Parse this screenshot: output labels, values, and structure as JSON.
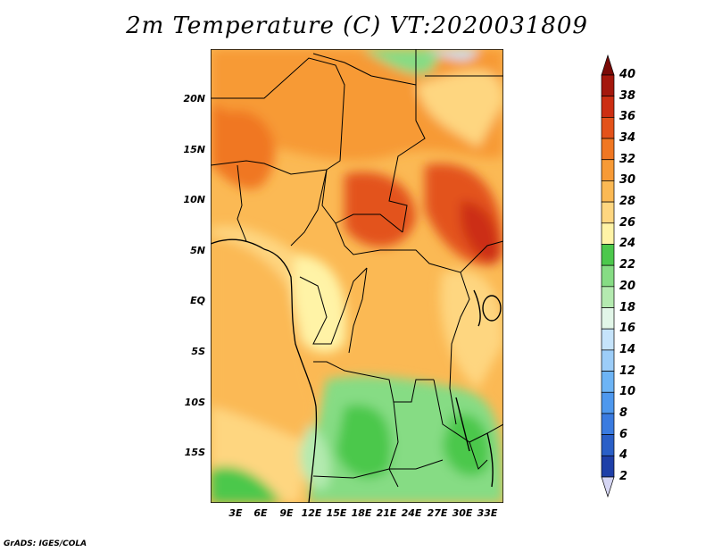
{
  "title": "2m Temperature (C) VT:2020031809",
  "footer": "GrADS: IGES/COLA",
  "map": {
    "region": "Central Africa",
    "lon_range": [
      0,
      35
    ],
    "lat_range": [
      -20,
      25
    ],
    "x_ticks": [
      "3E",
      "6E",
      "9E",
      "12E",
      "15E",
      "18E",
      "21E",
      "24E",
      "27E",
      "30E",
      "33E"
    ],
    "y_ticks": [
      "20N",
      "15N",
      "10N",
      "5N",
      "EQ",
      "5S",
      "10S",
      "15S"
    ]
  },
  "colorbar": {
    "levels": [
      "2",
      "4",
      "6",
      "8",
      "10",
      "12",
      "14",
      "16",
      "18",
      "20",
      "22",
      "24",
      "26",
      "28",
      "30",
      "32",
      "34",
      "36",
      "38",
      "40"
    ],
    "colors": [
      "#1a1a8c",
      "#1e3fa8",
      "#2a5fc7",
      "#3a7be0",
      "#4e98ee",
      "#6db4f5",
      "#9ccdf8",
      "#c6e4fb",
      "#e2f6e8",
      "#b4eab0",
      "#86dc84",
      "#4cc84c",
      "#fff3a6",
      "#fed680",
      "#fbb954",
      "#f79a36",
      "#f07722",
      "#e3521a",
      "#cc2e12",
      "#a4170c",
      "#7a0a06"
    ]
  }
}
